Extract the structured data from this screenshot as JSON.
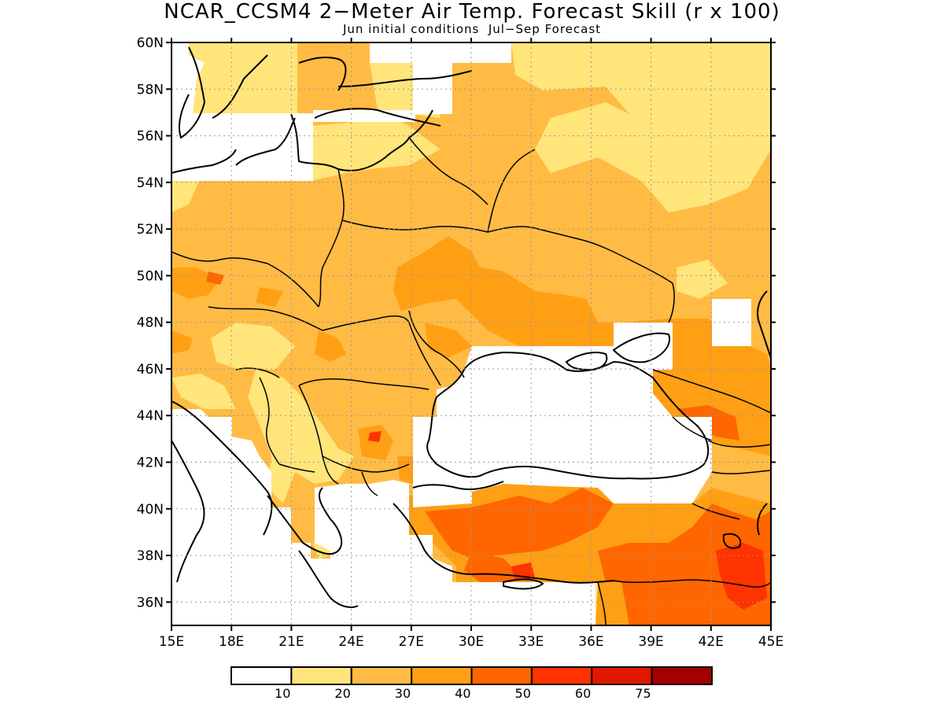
{
  "title": "NCAR_CCSM4 2−Meter Air Temp. Forecast Skill (r x 100)",
  "subtitle": "Jun initial conditions  Jul−Sep Forecast",
  "map": {
    "lon_range": [
      15,
      45
    ],
    "lat_range": [
      35,
      60
    ],
    "lon_ticks": [
      "15E",
      "18E",
      "21E",
      "24E",
      "27E",
      "30E",
      "33E",
      "36E",
      "39E",
      "42E",
      "45E"
    ],
    "lat_ticks": [
      "60N",
      "58N",
      "56N",
      "54N",
      "52N",
      "50N",
      "48N",
      "46N",
      "44N",
      "42N",
      "40N",
      "38N",
      "36N"
    ],
    "grid": true
  },
  "legend": {
    "bins": [
      {
        "color": "#ffffff"
      },
      {
        "color": "#ffe57a"
      },
      {
        "color": "#ffbb44"
      },
      {
        "color": "#ff9f14"
      },
      {
        "color": "#ff6600"
      },
      {
        "color": "#ff3300"
      },
      {
        "color": "#e01800"
      },
      {
        "color": "#a30000"
      }
    ],
    "labels": [
      "10",
      "20",
      "30",
      "40",
      "50",
      "60",
      "75"
    ]
  }
}
